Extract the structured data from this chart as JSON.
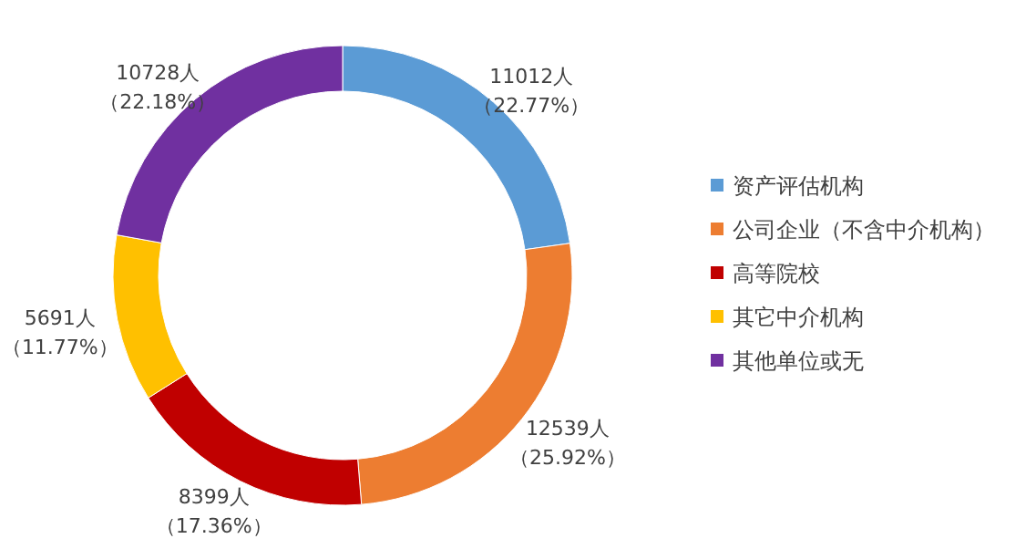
{
  "chart_data": {
    "type": "donut",
    "categories": [
      "资产评估机构",
      "公司企业（不含中介机构）",
      "高等院校",
      "其它中介机构",
      "其他单位或无"
    ],
    "values": [
      11012,
      12539,
      8399,
      5691,
      10728
    ],
    "colors": [
      "#5b9bd5",
      "#ed7d31",
      "#c00000",
      "#ffc000",
      "#7030a0"
    ],
    "value_labels": [
      "11012人（22.77%）",
      "12539人（25.92%）",
      "8399人（17.36%）",
      "5691人（11.77%）",
      "10728人（22.18%）"
    ],
    "legend": "right"
  }
}
